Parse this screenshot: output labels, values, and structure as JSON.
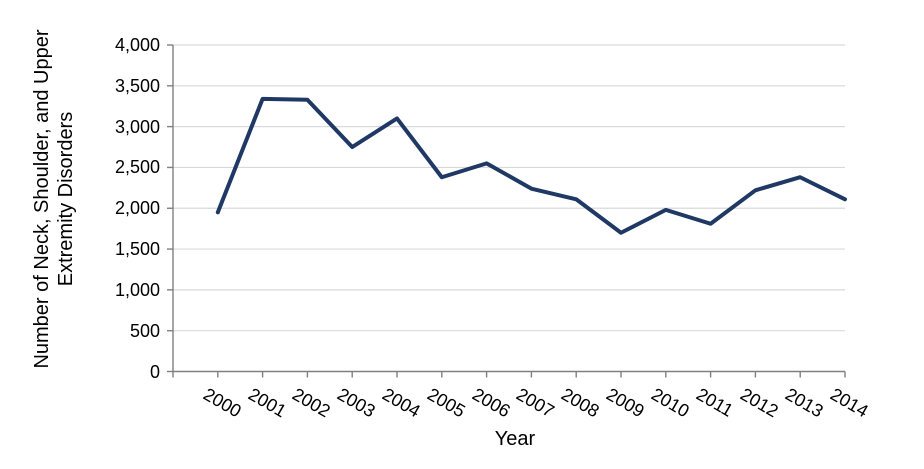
{
  "chart_data": {
    "type": "line",
    "title": "",
    "xlabel": "Year",
    "ylabel": "Number of Neck, Shoulder, and Upper Extremity Disorders",
    "categories": [
      "2000",
      "2001",
      "2002",
      "2003",
      "2004",
      "2005",
      "2006",
      "2007",
      "2008",
      "2009",
      "2010",
      "2011",
      "2012",
      "2013",
      "2014"
    ],
    "values": [
      1950,
      3340,
      3330,
      2750,
      3100,
      2380,
      2550,
      2240,
      2110,
      1700,
      1980,
      1810,
      2220,
      2380,
      2110
    ],
    "ylim": [
      0,
      4000
    ],
    "ytick_step": 500,
    "ytick_labels": [
      "0",
      "500",
      "1,000",
      "1,500",
      "2,000",
      "2,500",
      "3,000",
      "3,500",
      "4,000"
    ],
    "grid": "horizontal-only",
    "legend": "none",
    "x_label_rotation_deg": 30,
    "colors": {
      "line": "#1F3864",
      "gridline": "#D9D9D9",
      "axis": "#808080",
      "text": "#000000",
      "background": "#FFFFFF"
    }
  }
}
